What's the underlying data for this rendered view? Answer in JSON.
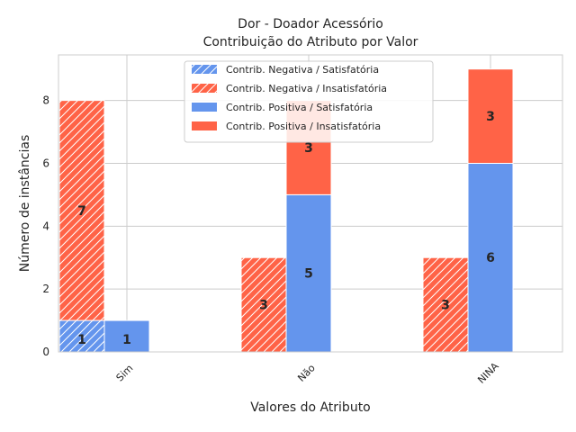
{
  "chart_data": {
    "type": "bar",
    "title_line1": "Dor - Doador Acessório",
    "title_line2": "Contribuição do Atributo por Valor",
    "xlabel": "Valores do Atributo",
    "ylabel": "Número de instâncias",
    "categories": [
      "Sim",
      "Não",
      "NINA"
    ],
    "ylim": [
      0,
      9.45
    ],
    "yticks": [
      0,
      2,
      4,
      6,
      8
    ],
    "grid": true,
    "legend_position": "upper-center",
    "series": [
      {
        "name": "Contrib. Negativa / Satisfatória",
        "group": "negative",
        "hatched": true,
        "color": "#6495ED",
        "values": [
          1,
          0,
          0
        ]
      },
      {
        "name": "Contrib. Negativa / Insatisfatória",
        "group": "negative",
        "hatched": true,
        "color": "#FF6347",
        "values": [
          7,
          3,
          3
        ]
      },
      {
        "name": "Contrib. Positiva / Satisfatória",
        "group": "positive",
        "hatched": false,
        "color": "#6495ED",
        "values": [
          1,
          5,
          6
        ]
      },
      {
        "name": "Contrib. Positiva / Insatisfatória",
        "group": "positive",
        "hatched": false,
        "color": "#FF6347",
        "values": [
          0,
          3,
          3
        ]
      }
    ]
  }
}
